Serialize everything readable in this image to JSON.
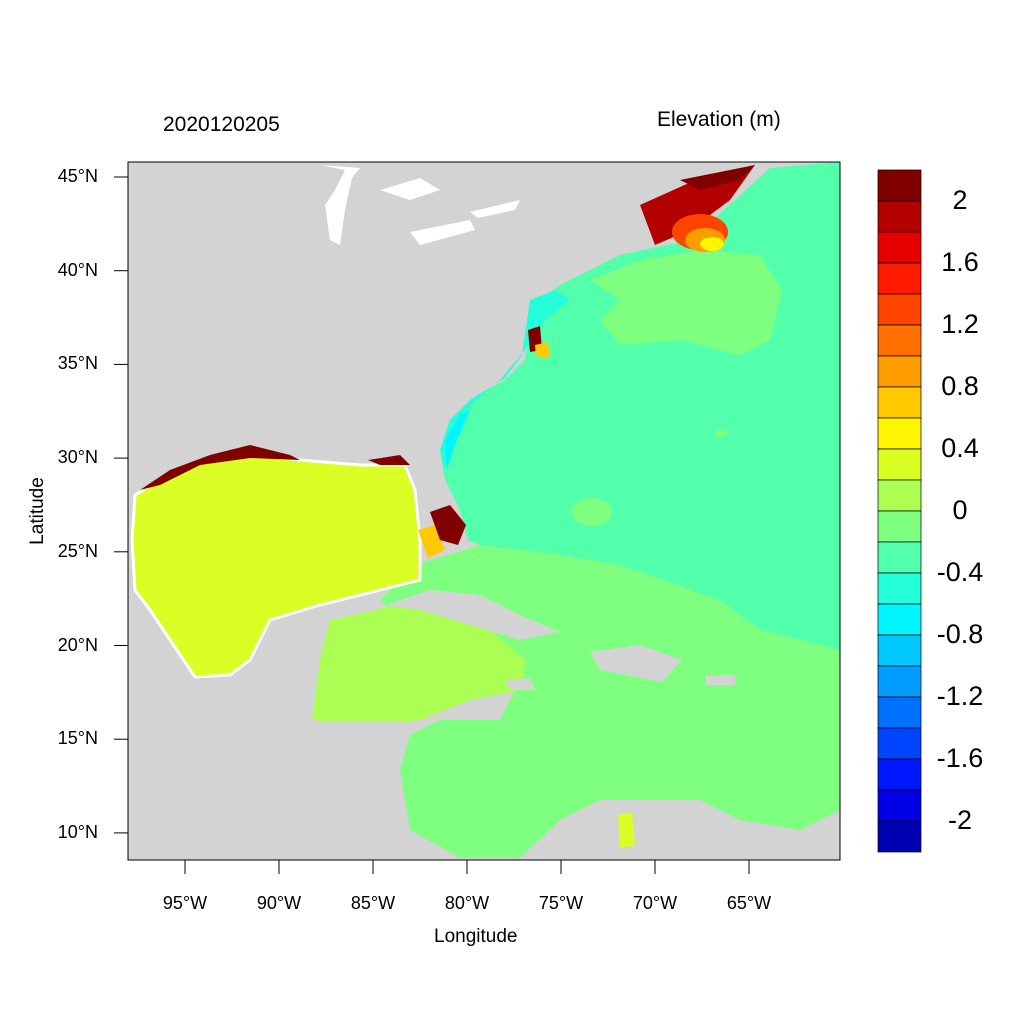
{
  "title_left": "2020120205",
  "title_right": "Elevation (m)",
  "x_axis": {
    "label": "Longitude",
    "ticks": [
      "95°W",
      "90°W",
      "85°W",
      "80°W",
      "75°W",
      "70°W",
      "65°W"
    ]
  },
  "y_axis": {
    "label": "Latitude",
    "ticks": [
      "45°N",
      "40°N",
      "35°N",
      "30°N",
      "25°N",
      "20°N",
      "15°N",
      "10°N"
    ]
  },
  "colorbar": {
    "labels": [
      "2",
      "1.6",
      "1.2",
      "0.8",
      "0.4",
      "0",
      "-0.4",
      "-0.8",
      "-1.2",
      "-1.6",
      "-2"
    ],
    "colors": [
      "#800000",
      "#b30000",
      "#e60000",
      "#ff1a00",
      "#ff4400",
      "#ff7000",
      "#ff9c00",
      "#ffc800",
      "#fff500",
      "#d9ff24",
      "#abff52",
      "#7fff80",
      "#52ffab",
      "#24ffd9",
      "#00f5ff",
      "#00c8ff",
      "#009cff",
      "#0070ff",
      "#0044ff",
      "#0018ff",
      "#0000e6",
      "#0000b3"
    ]
  },
  "colors": {
    "land": "#d3d3d3",
    "lakes": "#ffffff"
  }
}
